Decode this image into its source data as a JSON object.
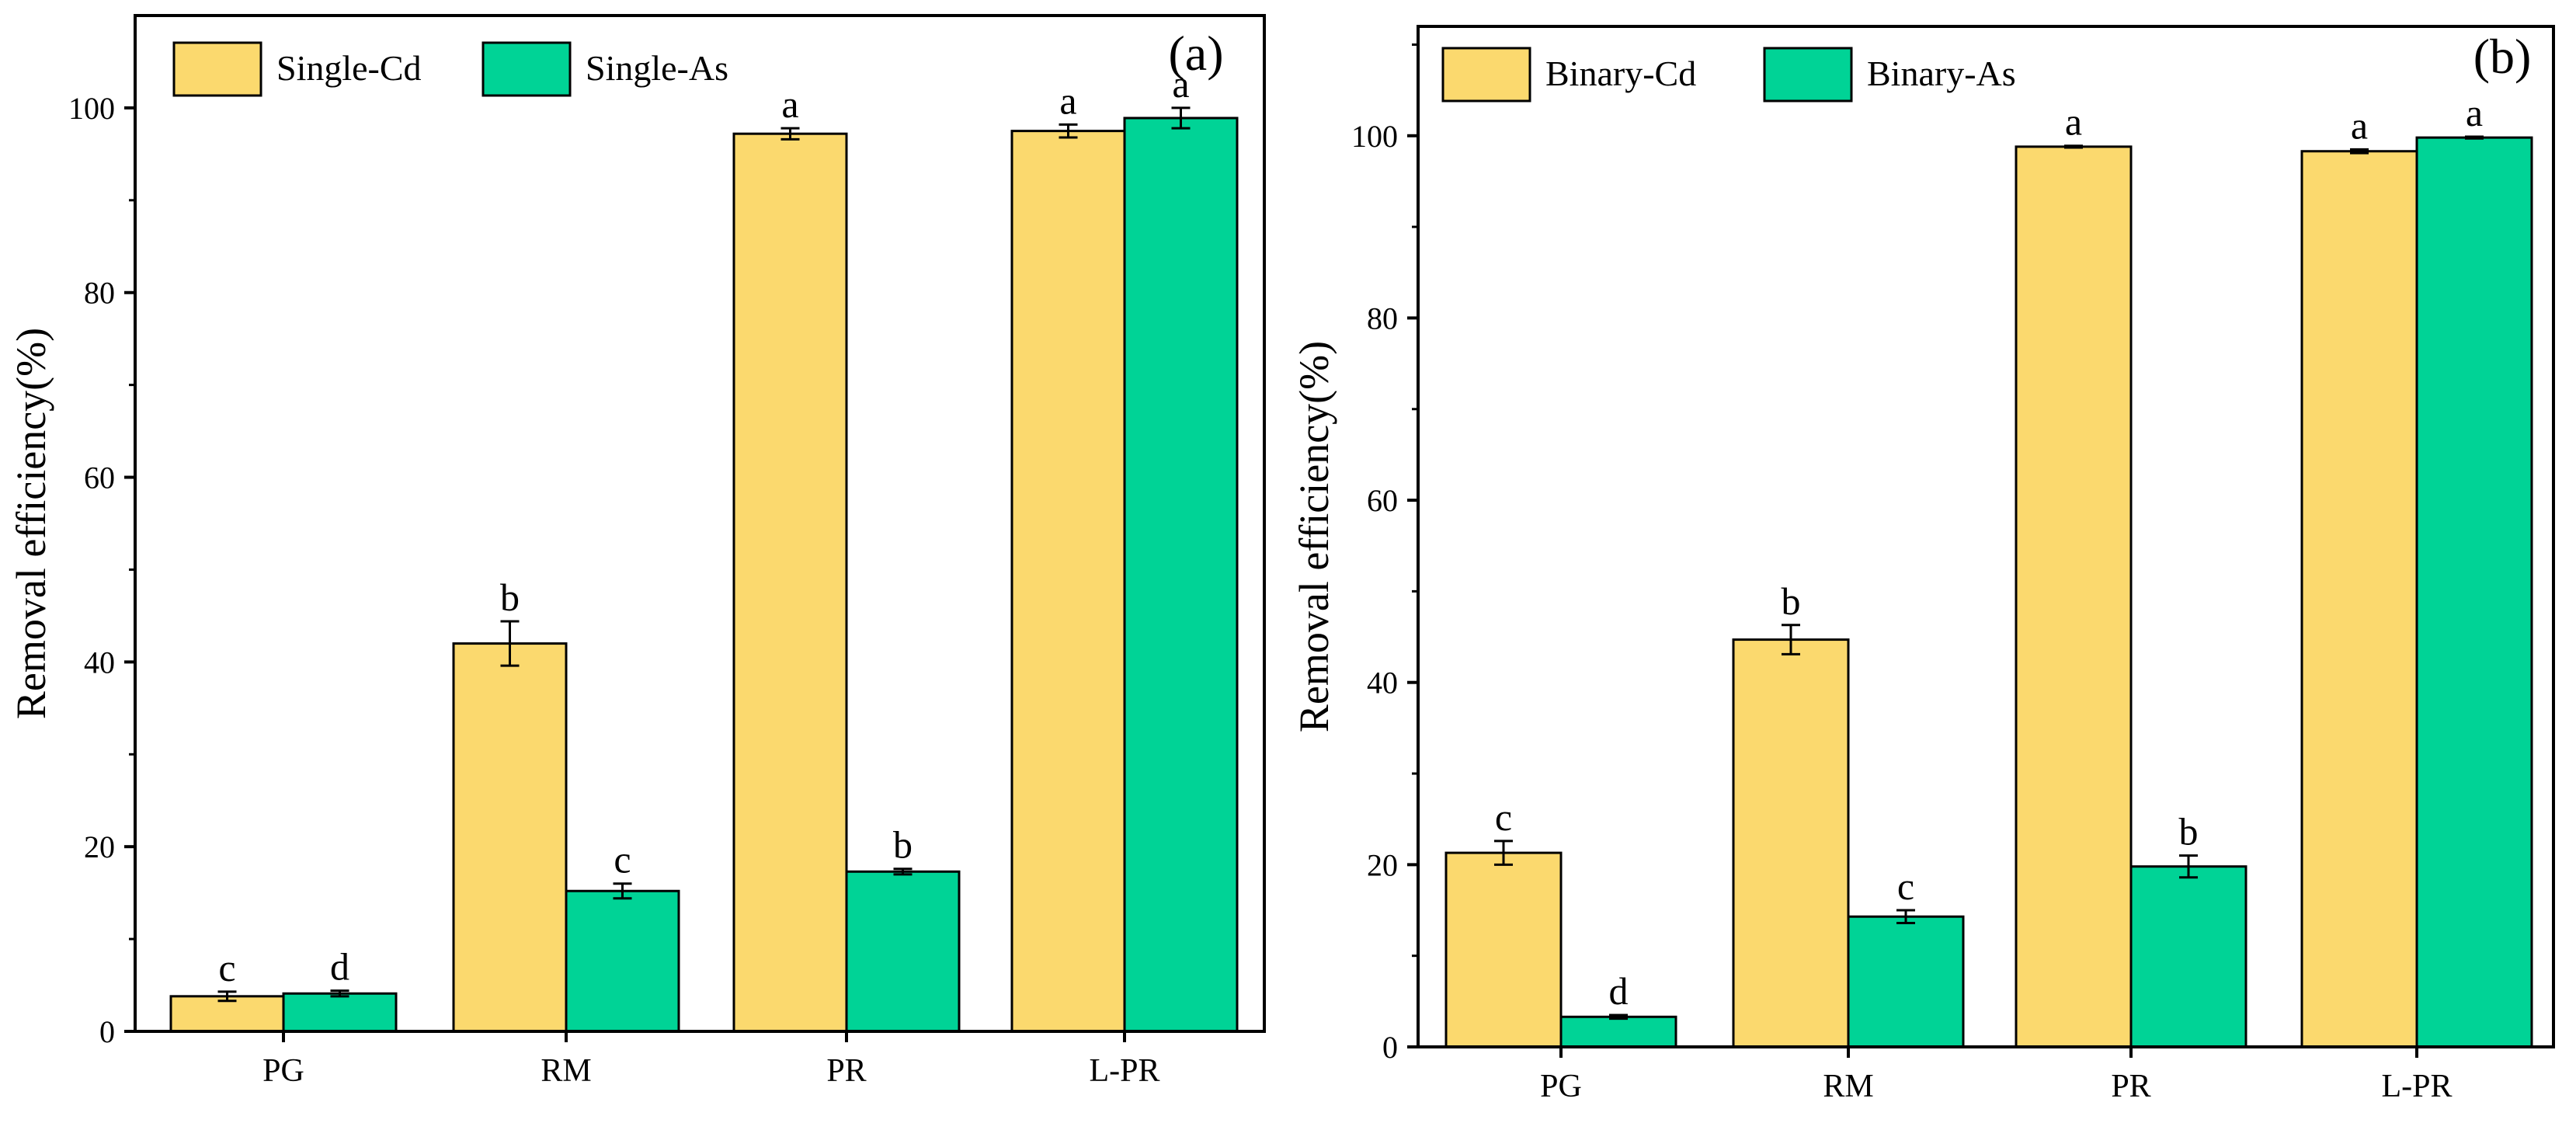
{
  "colors": {
    "cd": "#fbd96e",
    "as": "#00d396",
    "axis": "#000000"
  },
  "chart_data": [
    {
      "type": "bar",
      "panel_label": "(a)",
      "title": "",
      "xlabel": "",
      "ylabel": "Removal efficiency(%)",
      "ylim": [
        0,
        110
      ],
      "yticks": [
        0,
        20,
        40,
        60,
        80,
        100
      ],
      "legend_position": "top-left",
      "categories": [
        "PG",
        "RM",
        "PR",
        "L-PR"
      ],
      "series": [
        {
          "name": "Single-Cd",
          "color_key": "cd",
          "values": [
            3.8,
            42.0,
            97.2,
            97.5
          ],
          "errors": [
            0.5,
            2.4,
            0.6,
            0.7
          ],
          "letters": [
            "c",
            "b",
            "a",
            "a"
          ]
        },
        {
          "name": "Single-As",
          "color_key": "as",
          "values": [
            4.1,
            15.2,
            17.3,
            98.9
          ],
          "errors": [
            0.3,
            0.8,
            0.3,
            1.1
          ],
          "letters": [
            "d",
            "c",
            "b",
            "a"
          ]
        }
      ]
    },
    {
      "type": "bar",
      "panel_label": "(b)",
      "title": "",
      "xlabel": "",
      "ylabel": "Removal efficiency(%)",
      "ylim": [
        0,
        112
      ],
      "yticks": [
        0,
        20,
        40,
        60,
        80,
        100
      ],
      "legend_position": "top-left",
      "categories": [
        "PG",
        "RM",
        "PR",
        "L-PR"
      ],
      "series": [
        {
          "name": "Binary-Cd",
          "color_key": "cd",
          "values": [
            21.3,
            44.7,
            98.8,
            98.3
          ],
          "errors": [
            1.3,
            1.6,
            0.1,
            0.2
          ],
          "letters": [
            "c",
            "b",
            "a",
            "a"
          ]
        },
        {
          "name": "Binary-As",
          "color_key": "as",
          "values": [
            3.3,
            14.3,
            19.8,
            99.8
          ],
          "errors": [
            0.2,
            0.7,
            1.2,
            0.1
          ],
          "letters": [
            "d",
            "c",
            "b",
            "a"
          ]
        }
      ]
    }
  ]
}
